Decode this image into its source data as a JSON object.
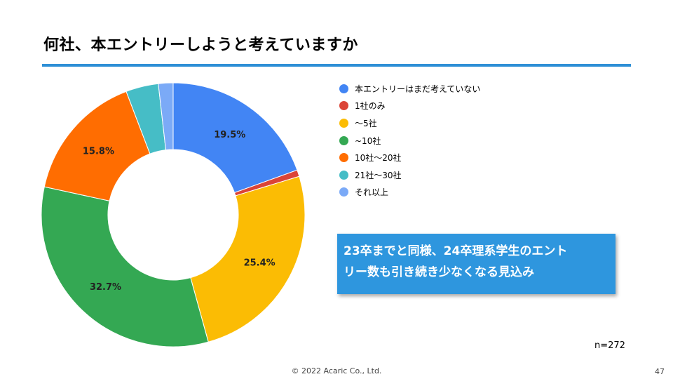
{
  "title": "何社、本エントリーしようと考えていますか",
  "chart_data": {
    "type": "pie",
    "style": "donut",
    "categories": [
      "本エントリーはまだ考えていない",
      "1社のみ",
      "〜5社",
      "~10社",
      "10社〜20社",
      "21社〜30社",
      "それ以上"
    ],
    "values": [
      19.5,
      0.8,
      25.4,
      32.7,
      15.8,
      4.0,
      1.8
    ],
    "labels": [
      "19.5%",
      "",
      "25.4%",
      "32.7%",
      "15.8%",
      "",
      ""
    ],
    "colors": [
      "#4285f4",
      "#db4437",
      "#fbbc04",
      "#34a853",
      "#ff6d01",
      "#46bdc6",
      "#7baaf7"
    ],
    "legend_position": "right"
  },
  "callout": {
    "line1": "23卒までと同様、24卒理系学生のエント",
    "line2": "リー数も引き続き少なくなる見込み"
  },
  "sample_size": "n=272",
  "footer": {
    "copyright": "© 2022 Acaric Co., Ltd.",
    "page_number": "47"
  }
}
